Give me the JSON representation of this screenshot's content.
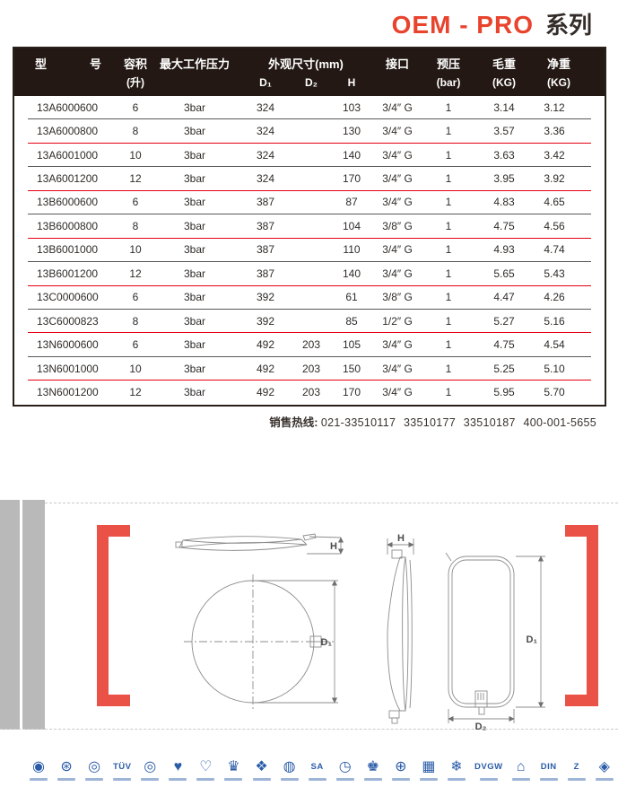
{
  "title": {
    "series_en": "OEM - PRO",
    "series_zh": "系列"
  },
  "table": {
    "header": {
      "model_left": "型",
      "model_right": "号",
      "capacity": "容积",
      "capacity_unit": "(升)",
      "max_pressure": "最大工作压力",
      "dims": "外观尺寸(mm)",
      "d1": "D₁",
      "d2": "D₂",
      "h": "H",
      "port": "接口",
      "precharge": "预压",
      "precharge_unit": "(bar)",
      "gross": "毛重",
      "gross_unit": "(KG)",
      "net": "净重",
      "net_unit": "(KG)"
    },
    "rows": [
      [
        "13A6000600",
        "6",
        "3bar",
        "324",
        "",
        "103",
        "3/4″ G",
        "1",
        "3.14",
        "3.12"
      ],
      [
        "13A6000800",
        "8",
        "3bar",
        "324",
        "",
        "130",
        "3/4″ G",
        "1",
        "3.57",
        "3.36"
      ],
      [
        "13A6001000",
        "10",
        "3bar",
        "324",
        "",
        "140",
        "3/4″ G",
        "1",
        "3.63",
        "3.42"
      ],
      [
        "13A6001200",
        "12",
        "3bar",
        "324",
        "",
        "170",
        "3/4″ G",
        "1",
        "3.95",
        "3.92"
      ],
      [
        "13B6000600",
        "6",
        "3bar",
        "387",
        "",
        "87",
        "3/4″ G",
        "1",
        "4.83",
        "4.65"
      ],
      [
        "13B6000800",
        "8",
        "3bar",
        "387",
        "",
        "104",
        "3/8″ G",
        "1",
        "4.75",
        "4.56"
      ],
      [
        "13B6001000",
        "10",
        "3bar",
        "387",
        "",
        "110",
        "3/4″ G",
        "1",
        "4.93",
        "4.74"
      ],
      [
        "13B6001200",
        "12",
        "3bar",
        "387",
        "",
        "140",
        "3/4″ G",
        "1",
        "5.65",
        "5.43"
      ],
      [
        "13C0000600",
        "6",
        "3bar",
        "392",
        "",
        "61",
        "3/8″ G",
        "1",
        "4.47",
        "4.26"
      ],
      [
        "13C6000823",
        "8",
        "3bar",
        "392",
        "",
        "85",
        "1/2″ G",
        "1",
        "5.27",
        "5.16"
      ],
      [
        "13N6000600",
        "6",
        "3bar",
        "492",
        "203",
        "105",
        "3/4″ G",
        "1",
        "4.75",
        "4.54"
      ],
      [
        "13N6001000",
        "10",
        "3bar",
        "492",
        "203",
        "150",
        "3/4″ G",
        "1",
        "5.25",
        "5.10"
      ],
      [
        "13N6001200",
        "12",
        "3bar",
        "492",
        "203",
        "170",
        "3/4″ G",
        "1",
        "5.95",
        "5.70"
      ]
    ]
  },
  "hotline": {
    "label": "销售热线:",
    "numbers": "021-33510117 33510177 33510187 400-001-5655"
  },
  "drawing": {
    "labels": {
      "top_h": "H",
      "front_d1": "D₁",
      "side_h": "H",
      "rear_d1": "D₁",
      "rear_d2": "D₂"
    }
  },
  "cert_icons": [
    {
      "name": "round-emblem-seal",
      "glyph": "◉",
      "type": "mark"
    },
    {
      "name": "round-stamp-seal",
      "glyph": "⊛",
      "type": "mark"
    },
    {
      "name": "round-seal",
      "glyph": "◎",
      "type": "mark"
    },
    {
      "name": "tuv-logo",
      "glyph": "TÜV",
      "type": "text"
    },
    {
      "name": "round-seal-2",
      "glyph": "◎",
      "type": "mark"
    },
    {
      "name": "heart-badge",
      "glyph": "♥",
      "type": "mark"
    },
    {
      "name": "heart-outline-badge",
      "glyph": "♡",
      "type": "mark"
    },
    {
      "name": "crest-badge",
      "glyph": "♛",
      "type": "mark"
    },
    {
      "name": "floral-eagle-badge",
      "glyph": "❖",
      "type": "mark"
    },
    {
      "name": "round-seal-3",
      "glyph": "◍",
      "type": "mark"
    },
    {
      "name": "sa-oval-logo",
      "glyph": "SA",
      "type": "text"
    },
    {
      "name": "gauge-badge",
      "glyph": "◷",
      "type": "mark"
    },
    {
      "name": "eagle-badge",
      "glyph": "♚",
      "type": "mark"
    },
    {
      "name": "round-seal-4",
      "glyph": "⊕",
      "type": "mark"
    },
    {
      "name": "stamp-square-badge",
      "glyph": "▦",
      "type": "mark"
    },
    {
      "name": "snowflake-badge",
      "glyph": "❄",
      "type": "mark"
    },
    {
      "name": "dvgw-logo",
      "glyph": "DVGW",
      "type": "text"
    },
    {
      "name": "roof-badge",
      "glyph": "⌂",
      "type": "mark"
    },
    {
      "name": "din-logo",
      "glyph": "DIN",
      "type": "text"
    },
    {
      "name": "z-badge",
      "glyph": "Z",
      "type": "text"
    },
    {
      "name": "diamond-dot-badge",
      "glyph": "◈",
      "type": "mark"
    }
  ],
  "colors": {
    "accent_red": "#E8432D",
    "separator_red": "#E60012",
    "separator_dark": "#595757",
    "header_bg": "#231813",
    "bracket_red": "#EA5147",
    "icon_blue": "#2B5CA8",
    "gray_band": "#B9B9B9"
  }
}
